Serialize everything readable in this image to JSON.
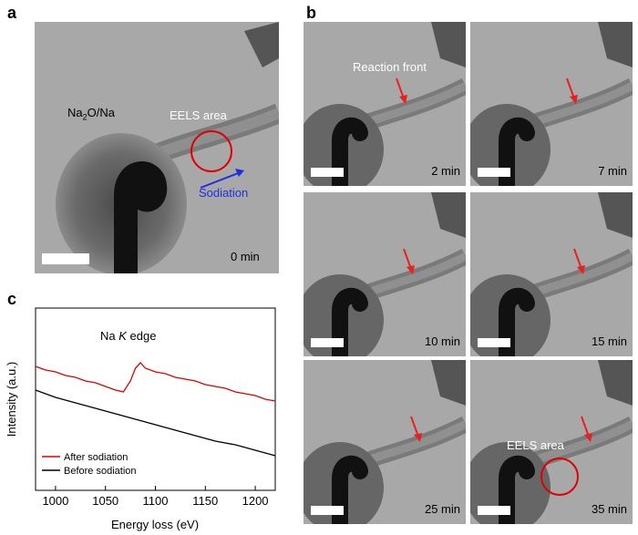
{
  "panel_a": {
    "letter": "a",
    "label_material": "Na",
    "label_material_sub": "2",
    "label_material_rest": "O/Na",
    "label_eels": "EELS area",
    "label_sodiation": "Sodiation",
    "time": "0 min"
  },
  "panel_b": {
    "letter": "b",
    "reaction_front_label": "Reaction front",
    "eels_label": "EELS area",
    "frames": [
      {
        "time": "2 min"
      },
      {
        "time": "7 min"
      },
      {
        "time": "10 min"
      },
      {
        "time": "15 min"
      },
      {
        "time": "25 min"
      },
      {
        "time": "35 min"
      }
    ]
  },
  "panel_c": {
    "letter": "c",
    "annotation_prefix": "Na ",
    "annotation_k": "K",
    "annotation_suffix": " edge"
  },
  "colors": {
    "after": "#e00000",
    "before": "#000000",
    "arrow_red": "#e82020",
    "arrow_blue": "#1f2fe0",
    "tem_bg": "#a8a8a8"
  },
  "chart_data": {
    "type": "line",
    "xlabel": "Energy loss (eV)",
    "ylabel": "Intensity (a.u.)",
    "xlim": [
      980,
      1220
    ],
    "ylim": [
      0,
      1
    ],
    "xticks": [
      1000,
      1050,
      1100,
      1150,
      1200
    ],
    "legend_position": "bottom-left",
    "series": [
      {
        "name": "After sodiation",
        "color": "#e00000",
        "x": [
          980,
          990,
          1000,
          1010,
          1020,
          1030,
          1040,
          1050,
          1060,
          1068,
          1075,
          1080,
          1085,
          1090,
          1100,
          1110,
          1120,
          1130,
          1140,
          1150,
          1160,
          1170,
          1180,
          1190,
          1200,
          1210,
          1220
        ],
        "y": [
          0.68,
          0.66,
          0.65,
          0.63,
          0.62,
          0.6,
          0.59,
          0.57,
          0.55,
          0.54,
          0.6,
          0.67,
          0.7,
          0.67,
          0.65,
          0.64,
          0.62,
          0.61,
          0.6,
          0.58,
          0.57,
          0.56,
          0.54,
          0.53,
          0.52,
          0.5,
          0.49
        ]
      },
      {
        "name": "Before sodiation",
        "color": "#000000",
        "x": [
          980,
          1000,
          1020,
          1040,
          1060,
          1080,
          1100,
          1120,
          1140,
          1160,
          1180,
          1200,
          1220
        ],
        "y": [
          0.55,
          0.51,
          0.48,
          0.45,
          0.42,
          0.39,
          0.36,
          0.33,
          0.3,
          0.27,
          0.25,
          0.22,
          0.19
        ]
      }
    ]
  }
}
